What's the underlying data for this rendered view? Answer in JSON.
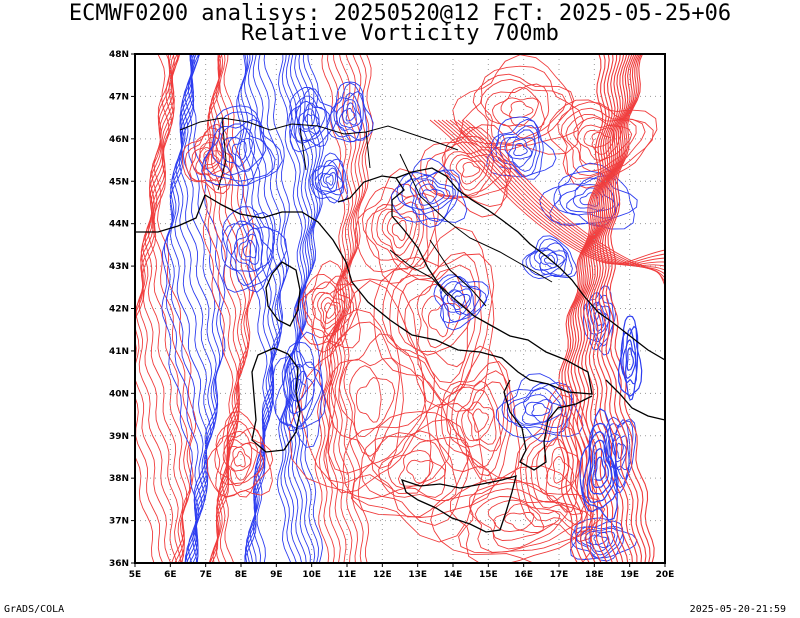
{
  "title_line1": "ECMWF0200 analisys: 20250520@12 FcT: 2025-05-25+06",
  "title_line2": "Relative Vorticity 700mb",
  "footer_left": "GrADS/COLA",
  "footer_right": "2025-05-20-21:59",
  "map": {
    "lon_ticks": [
      "5E",
      "6E",
      "7E",
      "8E",
      "9E",
      "10E",
      "11E",
      "12E",
      "13E",
      "14E",
      "15E",
      "16E",
      "17E",
      "18E",
      "19E",
      "20E"
    ],
    "lat_ticks": [
      "36N",
      "37N",
      "38N",
      "39N",
      "40N",
      "41N",
      "42N",
      "43N",
      "44N",
      "45N",
      "46N",
      "47N",
      "48N"
    ],
    "lon_range": [
      5,
      20
    ],
    "lat_range": [
      36,
      48
    ],
    "colors": {
      "positive": "#f03c3c",
      "negative": "#2c3cf0",
      "coast": "#000000",
      "grid": "#9a9a9a",
      "zero": "#c040c0"
    }
  }
}
